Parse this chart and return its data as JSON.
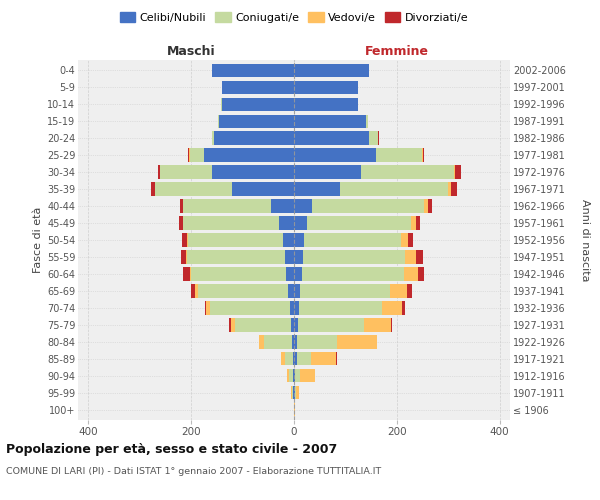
{
  "age_groups": [
    "100+",
    "95-99",
    "90-94",
    "85-89",
    "80-84",
    "75-79",
    "70-74",
    "65-69",
    "60-64",
    "55-59",
    "50-54",
    "45-49",
    "40-44",
    "35-39",
    "30-34",
    "25-29",
    "20-24",
    "15-19",
    "10-14",
    "5-9",
    "0-4"
  ],
  "birth_years": [
    "≤ 1906",
    "1907-1911",
    "1912-1916",
    "1917-1921",
    "1922-1926",
    "1927-1931",
    "1932-1936",
    "1937-1941",
    "1942-1946",
    "1947-1951",
    "1952-1956",
    "1957-1961",
    "1962-1966",
    "1967-1971",
    "1972-1976",
    "1977-1981",
    "1982-1986",
    "1987-1991",
    "1992-1996",
    "1997-2001",
    "2002-2006"
  ],
  "males_celibe": [
    0,
    1,
    1,
    2,
    3,
    5,
    8,
    12,
    15,
    18,
    22,
    30,
    45,
    120,
    160,
    175,
    155,
    145,
    140,
    140,
    160
  ],
  "males_coniugato": [
    0,
    3,
    8,
    15,
    55,
    110,
    155,
    175,
    185,
    190,
    185,
    185,
    170,
    150,
    100,
    28,
    5,
    2,
    1,
    0,
    0
  ],
  "males_vedovo": [
    0,
    1,
    4,
    8,
    10,
    8,
    8,
    5,
    3,
    2,
    1,
    1,
    1,
    1,
    0,
    1,
    0,
    0,
    0,
    0,
    0
  ],
  "males_divorziato": [
    0,
    0,
    0,
    0,
    0,
    4,
    2,
    9,
    12,
    10,
    10,
    8,
    5,
    8,
    5,
    2,
    0,
    0,
    0,
    0,
    0
  ],
  "females_nubile": [
    0,
    2,
    2,
    5,
    5,
    8,
    10,
    12,
    15,
    18,
    20,
    25,
    35,
    90,
    130,
    160,
    145,
    140,
    125,
    125,
    145
  ],
  "females_coniugata": [
    0,
    2,
    10,
    28,
    78,
    128,
    162,
    175,
    198,
    198,
    188,
    202,
    218,
    210,
    182,
    88,
    18,
    4,
    0,
    0,
    0
  ],
  "females_vedova": [
    1,
    5,
    28,
    48,
    78,
    52,
    38,
    32,
    28,
    22,
    14,
    10,
    8,
    5,
    2,
    2,
    1,
    0,
    0,
    0,
    0
  ],
  "females_divorziata": [
    0,
    0,
    0,
    2,
    1,
    2,
    5,
    10,
    12,
    12,
    10,
    8,
    8,
    12,
    10,
    2,
    1,
    0,
    0,
    0,
    0
  ],
  "color_celibe": "#4472c4",
  "color_coniugato": "#c5daa0",
  "color_vedovo": "#ffc060",
  "color_divorziato": "#c0282c",
  "title": "Popolazione per età, sesso e stato civile - 2007",
  "subtitle": "COMUNE DI LARI (PI) - Dati ISTAT 1° gennaio 2007 - Elaborazione TUTTITALIA.IT",
  "ylabel_left": "Fasce di età",
  "ylabel_right": "Anni di nascita",
  "header_maschi": "Maschi",
  "header_femmine": "Femmine",
  "xlim": 420,
  "bg_color": "#efefef"
}
